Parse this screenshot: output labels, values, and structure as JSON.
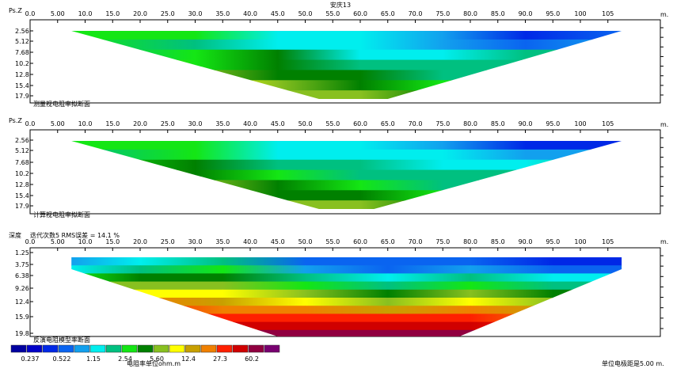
{
  "title": "安庆13",
  "distance_unit": "m.",
  "x_ticks": [
    "0.0",
    "5.00",
    "10.0",
    "15.0",
    "20.0",
    "25.0",
    "30.0",
    "35.0",
    "40.0",
    "45.0",
    "50.0",
    "55.0",
    "60.0",
    "65.0",
    "70.0",
    "75.0",
    "80.0",
    "85.0",
    "90.0",
    "95.0",
    "100",
    "105"
  ],
  "panels": [
    {
      "axis_label": "Ps.Z",
      "caption": "测量视电阻率拟断面",
      "depth_ticks": [
        "2.56",
        "5.12",
        "7.68",
        "10.2",
        "12.8",
        "15.4",
        "17.9"
      ]
    },
    {
      "axis_label": "Ps.Z",
      "caption": "计算视电阻率拟断面",
      "depth_ticks": [
        "2.56",
        "5.12",
        "7.68",
        "10.2",
        "12.8",
        "15.4",
        "17.9"
      ]
    },
    {
      "axis_label": "深度",
      "header_note": "迭代次数5 RMS误差 = 14.1 %",
      "caption": "反演电阻模型率断面",
      "depth_ticks": [
        "1.25",
        "3.75",
        "6.38",
        "9.26",
        "12.4",
        "15.9",
        "19.8"
      ]
    }
  ],
  "legend": {
    "colors": [
      "#0000a0",
      "#0000c8",
      "#0028e6",
      "#0a64f0",
      "#12a0ee",
      "#00eeee",
      "#00c080",
      "#14e614",
      "#008000",
      "#88c020",
      "#ffff00",
      "#c8a000",
      "#f08000",
      "#ff2000",
      "#d00000",
      "#900040",
      "#780070"
    ],
    "labels": [
      "0.237",
      "0.522",
      "1.15",
      "2.54",
      "5.60",
      "12.4",
      "27.3",
      "60.2"
    ],
    "unit_label": "电阻率单位ohm.m"
  },
  "electrode_spacing_label": "单位电极距是5.00 m.",
  "chart_data": [
    {
      "type": "heatmap",
      "title": "测量视电阻率拟断面",
      "x_label": "m.",
      "y_label": "Ps.Z",
      "x_range": [
        0,
        107.5
      ],
      "depth_levels": [
        2.56,
        5.12,
        7.68,
        10.2,
        12.8,
        15.4,
        17.9
      ],
      "pseudosection_extent": {
        "start": 7.5,
        "end": 107.5,
        "bottom_start": 52.5,
        "bottom_end": 65
      },
      "color_scale": "legend"
    },
    {
      "type": "heatmap",
      "title": "计算视电阻率拟断面",
      "x_label": "m.",
      "y_label": "Ps.Z",
      "x_range": [
        0,
        107.5
      ],
      "depth_levels": [
        2.56,
        5.12,
        7.68,
        10.2,
        12.8,
        15.4,
        17.9
      ],
      "pseudosection_extent": {
        "start": 7.5,
        "end": 107.5,
        "bottom_start": 52.5,
        "bottom_end": 62.5
      },
      "color_scale": "legend"
    },
    {
      "type": "heatmap",
      "title": "反演电阻模型率断面",
      "subtitle": "迭代次数5 RMS误差 = 14.1 %",
      "x_label": "m.",
      "y_label": "深度",
      "x_range": [
        0,
        107.5
      ],
      "depth_levels": [
        1.25,
        3.75,
        6.38,
        9.26,
        12.4,
        15.9,
        19.8
      ],
      "section_extent": {
        "start": 7.5,
        "end": 107.5
      },
      "color_scale": "legend"
    }
  ]
}
